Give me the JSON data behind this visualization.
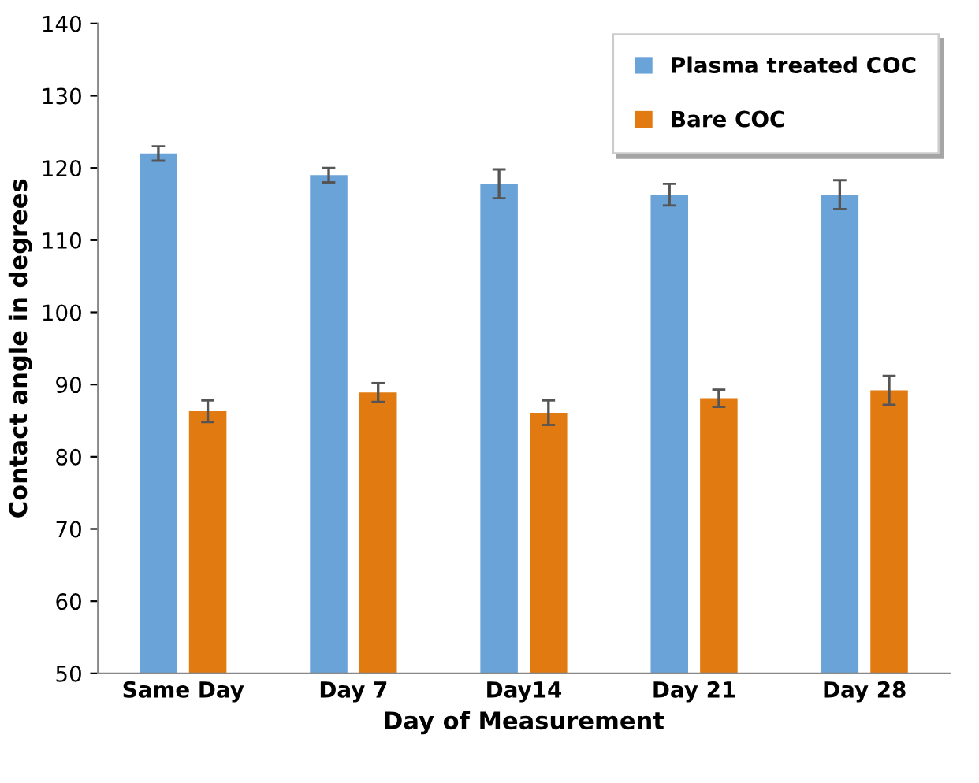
{
  "chart_data": {
    "type": "bar",
    "xlabel": "Day of Measurement",
    "ylabel": "Contact angle in degrees",
    "categories": [
      "Same Day",
      "Day 7",
      "Day14",
      "Day 21",
      "Day 28"
    ],
    "series": [
      {
        "name": "Plasma treated COC",
        "color": "#6aa3d8",
        "values": [
          122,
          119,
          117.8,
          116.3,
          116.3
        ],
        "errors": [
          1,
          1,
          2,
          1.5,
          2
        ]
      },
      {
        "name": "Bare COC",
        "color": "#e27a12",
        "values": [
          86.3,
          88.9,
          86.1,
          88.1,
          89.2
        ],
        "errors": [
          1.5,
          1.3,
          1.7,
          1.2,
          2
        ]
      }
    ],
    "ylim": [
      50,
      140
    ],
    "yticks": [
      50,
      60,
      70,
      80,
      90,
      100,
      110,
      120,
      130,
      140
    ],
    "grid": false,
    "legend": "top right"
  }
}
